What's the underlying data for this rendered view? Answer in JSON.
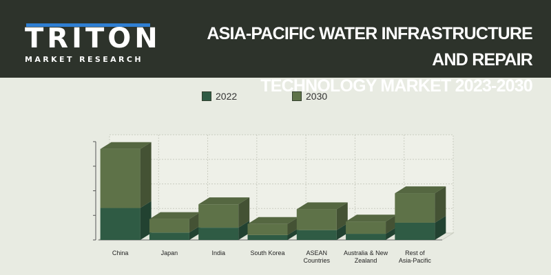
{
  "header": {
    "logo_word": "TRITON",
    "logo_sub": "MARKET RESEARCH",
    "title_line1": "ASIA-PACIFIC WATER INFRASTRUCTURE AND REPAIR",
    "title_line2": "TECHNOLOGY  MARKET 2023-2030"
  },
  "colors": {
    "header_bg": "#2d332b",
    "logo_accent": "#2f7fd3",
    "series_2022": "#2f5b44",
    "series_2030": "#5e7248"
  },
  "chart_data": {
    "type": "bar",
    "stacked": true,
    "three_d": true,
    "title": "",
    "xlabel": "",
    "ylabel": "",
    "ylim": [
      0,
      4
    ],
    "y_tick_labels_shown": false,
    "grid": true,
    "legend": "top-center",
    "categories": [
      [
        "China"
      ],
      [
        "Japan"
      ],
      [
        "India"
      ],
      [
        "South Korea"
      ],
      [
        "ASEAN",
        "Countries"
      ],
      [
        "Australia & New",
        "Zealand"
      ],
      [
        "Rest of",
        "Asia-Pacific"
      ]
    ],
    "series": [
      {
        "name": "2022",
        "values": [
          1.3,
          0.3,
          0.5,
          0.2,
          0.4,
          0.25,
          0.7
        ]
      },
      {
        "name": "2030",
        "values": [
          2.4,
          0.55,
          0.95,
          0.45,
          0.85,
          0.5,
          1.2
        ]
      }
    ]
  }
}
